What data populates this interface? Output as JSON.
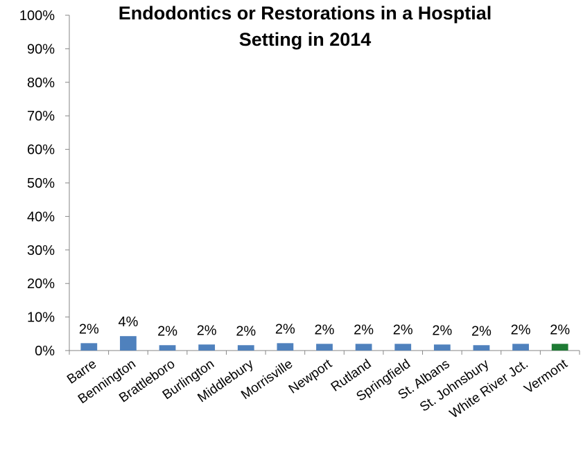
{
  "chart_data": {
    "type": "bar",
    "title": "Endodontics or  Restorations in a Hosptial Setting in 2014",
    "title_lines": [
      "Endodontics or  Restorations in a Hosptial",
      "Setting in 2014"
    ],
    "xlabel": "",
    "ylabel": "",
    "ylim": [
      0,
      100
    ],
    "y_ticks": [
      "0%",
      "10%",
      "20%",
      "30%",
      "40%",
      "50%",
      "60%",
      "70%",
      "80%",
      "90%",
      "100%"
    ],
    "grid": false,
    "legend": "none",
    "categories": [
      "Barre",
      "Bennington",
      "Brattleboro",
      "Burlington",
      "Middlebury",
      "Morrisville",
      "Newport",
      "Rutland",
      "Springfield",
      "St. Albans",
      "St. Johnsbury",
      "White River Jct.",
      "Vermont"
    ],
    "values": [
      2.2,
      4.3,
      1.6,
      1.8,
      1.6,
      2.2,
      2.0,
      2.0,
      2.0,
      1.8,
      1.6,
      2.0,
      2.0
    ],
    "data_labels": [
      "2%",
      "4%",
      "2%",
      "2%",
      "2%",
      "2%",
      "2%",
      "2%",
      "2%",
      "2%",
      "2%",
      "2%",
      "2%"
    ],
    "colors": {
      "default_bar": "#4F81BD",
      "highlight_bar": "#1E7B34",
      "highlight_category": "Vermont",
      "axis": "#868686"
    }
  }
}
